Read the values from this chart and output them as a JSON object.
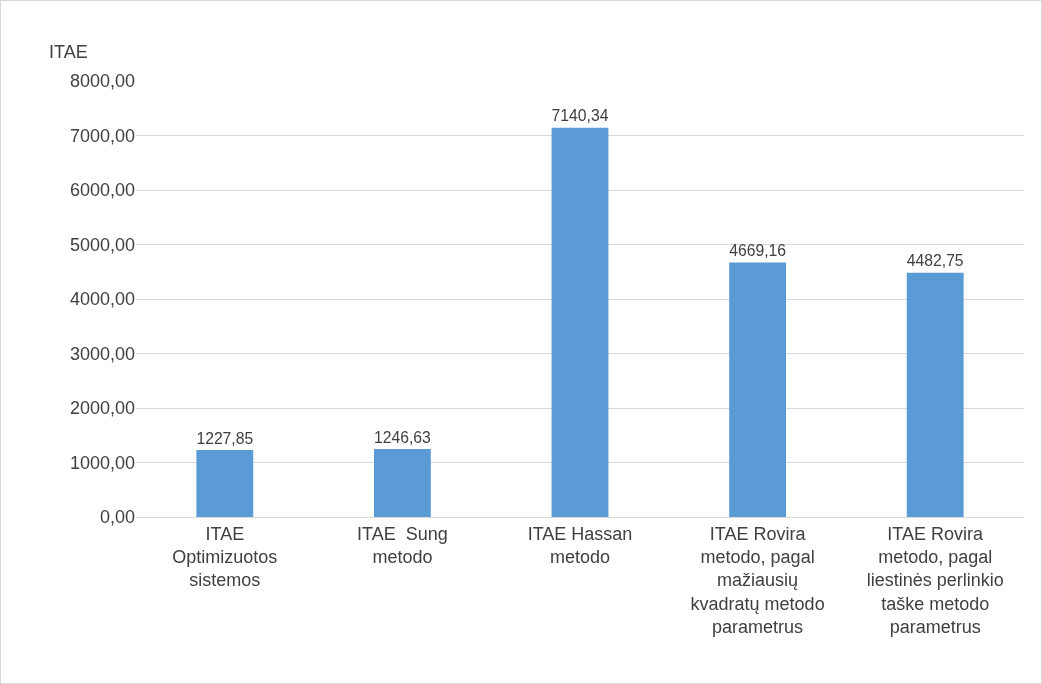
{
  "chart_data": {
    "type": "bar",
    "ylabel": "ITAE",
    "categories": [
      "ITAE Optimizuotos sistemos",
      "ITAE  Sung metodo",
      "ITAE Hassan metodo",
      "ITAE Rovira metodo, pagal mažiausių kvadratų metodo parametrus",
      "ITAE Rovira metodo, pagal liestinės perlinkio taške metodo parametrus"
    ],
    "values": [
      1227.85,
      1246.63,
      7140.34,
      4669.16,
      4482.75
    ],
    "value_labels": [
      "1227,85",
      "1246,63",
      "7140,34",
      "4669,16",
      "4482,75"
    ],
    "color": "#5b9bd5",
    "ylim": [
      0,
      8000
    ],
    "yticks": [
      {
        "value": 0,
        "label": "0,00"
      },
      {
        "value": 1000,
        "label": "1000,00"
      },
      {
        "value": 2000,
        "label": "2000,00"
      },
      {
        "value": 3000,
        "label": "3000,00"
      },
      {
        "value": 4000,
        "label": "4000,00"
      },
      {
        "value": 5000,
        "label": "5000,00"
      },
      {
        "value": 6000,
        "label": "6000,00"
      },
      {
        "value": 7000,
        "label": "7000,00"
      },
      {
        "value": 8000,
        "label": "8000,00"
      }
    ],
    "grid": "y"
  }
}
